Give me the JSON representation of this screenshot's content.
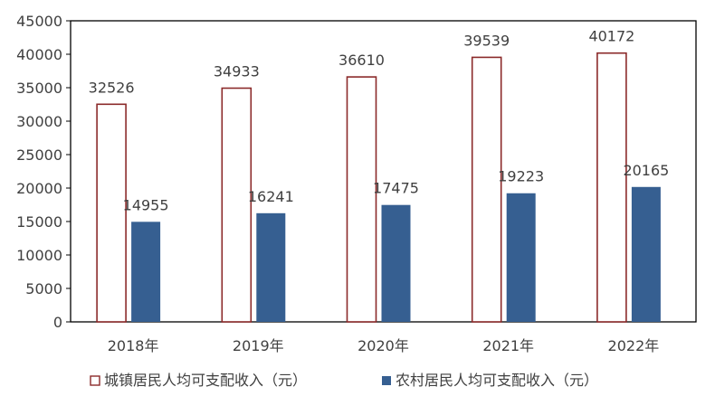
{
  "chart_data": {
    "type": "bar",
    "categories": [
      "2018年",
      "2019年",
      "2020年",
      "2021年",
      "2022年"
    ],
    "series": [
      {
        "name": "城镇居民人均可支配收入（元）",
        "values": [
          32526,
          34933,
          36610,
          39539,
          40172
        ],
        "style": "outline",
        "color": "#8b2a2a"
      },
      {
        "name": "农村居民人均可支配收入（元）",
        "values": [
          14955,
          16241,
          17475,
          19223,
          20165
        ],
        "style": "filled",
        "color": "#365f91"
      }
    ],
    "ylim": [
      0,
      45000
    ],
    "yticks": [
      0,
      5000,
      10000,
      15000,
      20000,
      25000,
      30000,
      35000,
      40000,
      45000
    ],
    "data_labels": true,
    "grid": false,
    "legend": "bottom"
  }
}
